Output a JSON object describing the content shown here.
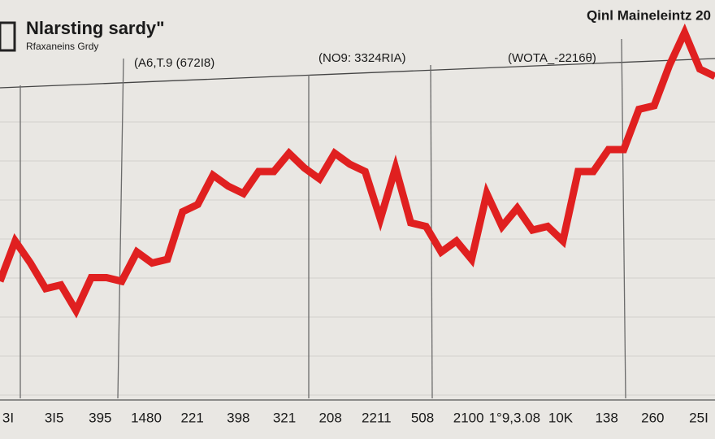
{
  "chart_data": {
    "type": "line",
    "title": "Nlarsting sardy\"",
    "subtitle": "Rfaxaneins Grdy",
    "top_right_title": "Qinl Maineleintz 20",
    "annotations": [
      "(A6,T.9 (672I8)",
      "(NO9: 3324RIA)",
      "(WOTA_-2216θ)"
    ],
    "x_labels": [
      "3I",
      "3I5",
      "395",
      "1480",
      "221",
      "398",
      "321",
      "208",
      "2211",
      "508",
      "2100",
      "1°9,3.08",
      "10K",
      "138",
      "260",
      "25I"
    ],
    "color": "#e02020",
    "values": [
      32,
      43,
      37,
      30,
      31,
      24,
      33,
      33,
      32,
      40,
      37,
      38,
      51,
      53,
      61,
      58,
      56,
      62,
      62,
      67,
      63,
      60,
      67,
      64,
      62,
      49,
      63,
      48,
      47,
      40,
      43,
      38,
      56,
      47,
      52,
      46,
      47,
      43,
      62,
      62,
      68,
      68,
      79,
      80,
      91,
      100,
      90,
      88
    ]
  }
}
